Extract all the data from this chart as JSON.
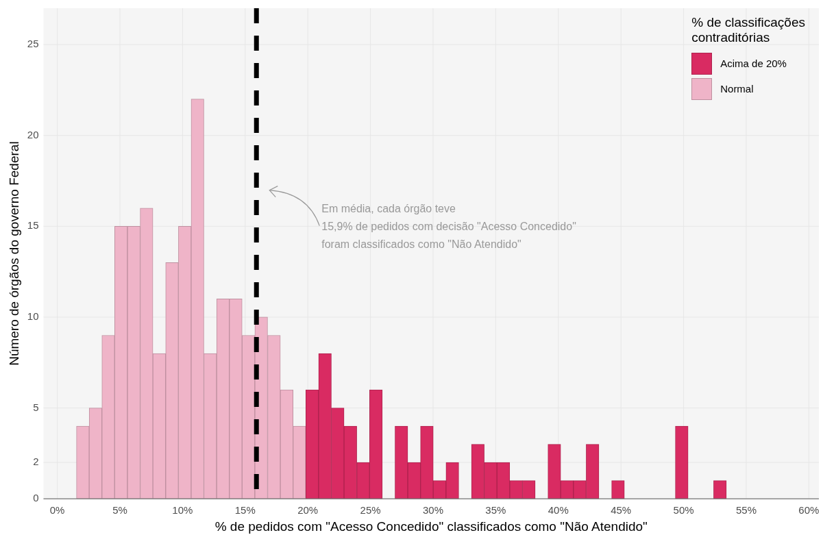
{
  "chart_data": {
    "type": "histogram",
    "xlabel": "% de pedidos com \"Acesso Concedido\" classificados como \"Não Atendido\"",
    "ylabel": "Número de órgãos do governo Federal",
    "legend_title": "% de classificações\ncontraditórias",
    "bins": [
      1.53,
      2.55,
      3.56,
      4.58,
      5.6,
      6.62,
      7.63,
      8.65,
      9.67,
      10.69,
      11.7,
      12.72,
      13.74,
      14.75,
      15.77,
      16.79,
      17.81,
      18.82,
      19.84,
      20.86,
      21.88,
      22.89,
      23.91,
      24.93,
      25.95,
      26.96,
      27.98,
      29.0,
      30.01,
      31.03,
      32.05,
      33.07,
      34.08,
      35.1,
      36.12,
      37.14,
      38.15,
      39.17,
      40.19,
      41.2,
      42.22,
      43.24,
      44.26,
      45.27,
      46.29,
      47.31,
      48.33,
      49.34,
      50.36,
      51.38,
      52.4,
      53.41
    ],
    "series": [
      {
        "name": "Acima de 20%",
        "color": "#d92b62",
        "values": [
          null,
          null,
          null,
          null,
          null,
          null,
          null,
          null,
          null,
          null,
          null,
          null,
          null,
          null,
          null,
          null,
          null,
          null,
          6,
          8,
          5,
          4,
          2,
          6,
          0,
          4,
          2,
          4,
          1,
          2,
          0,
          3,
          2,
          2,
          1,
          1,
          0,
          3,
          1,
          1,
          3,
          0,
          1,
          0,
          0,
          0,
          0,
          4,
          0,
          0,
          1
        ]
      },
      {
        "name": "Normal",
        "color": "#efb4c8",
        "values": [
          4,
          5,
          9,
          15,
          15,
          16,
          8,
          13,
          15,
          22,
          8,
          11,
          11,
          9,
          10,
          9,
          6,
          4,
          null,
          null,
          null,
          null,
          null,
          null,
          null,
          null,
          null,
          null,
          null,
          null,
          null,
          null,
          null,
          null,
          null,
          null,
          null,
          null,
          null,
          null,
          null,
          null,
          null,
          null,
          null,
          null,
          null,
          null,
          null,
          null,
          null
        ]
      }
    ],
    "xlim": [
      -1.1,
      60.8
    ],
    "xticks": [
      {
        "value": 0,
        "label": "0%"
      },
      {
        "value": 5,
        "label": "5%"
      },
      {
        "value": 10,
        "label": "10%"
      },
      {
        "value": 15,
        "label": "15%"
      },
      {
        "value": 20,
        "label": "20%"
      },
      {
        "value": 25,
        "label": "25%"
      },
      {
        "value": 30,
        "label": "30%"
      },
      {
        "value": 35,
        "label": "35%"
      },
      {
        "value": 40,
        "label": "40%"
      },
      {
        "value": 45,
        "label": "45%"
      },
      {
        "value": 50,
        "label": "50%"
      },
      {
        "value": 55,
        "label": "55%"
      },
      {
        "value": 60,
        "label": "60%"
      }
    ],
    "ylim": [
      0,
      27
    ],
    "yticks": [
      0,
      2,
      5,
      10,
      15,
      20,
      25
    ],
    "grid": true,
    "legend": "top right",
    "ref_lines": [
      {
        "axis": "x",
        "value": 15.9,
        "color": "#000000",
        "line_style": "dashed"
      }
    ],
    "annotations": [
      "Em média, cada órgão teve\n15,9% de pedidos com decisão \"Acesso Concedido\"\nforam classificados como \"Não Atendido\""
    ]
  }
}
